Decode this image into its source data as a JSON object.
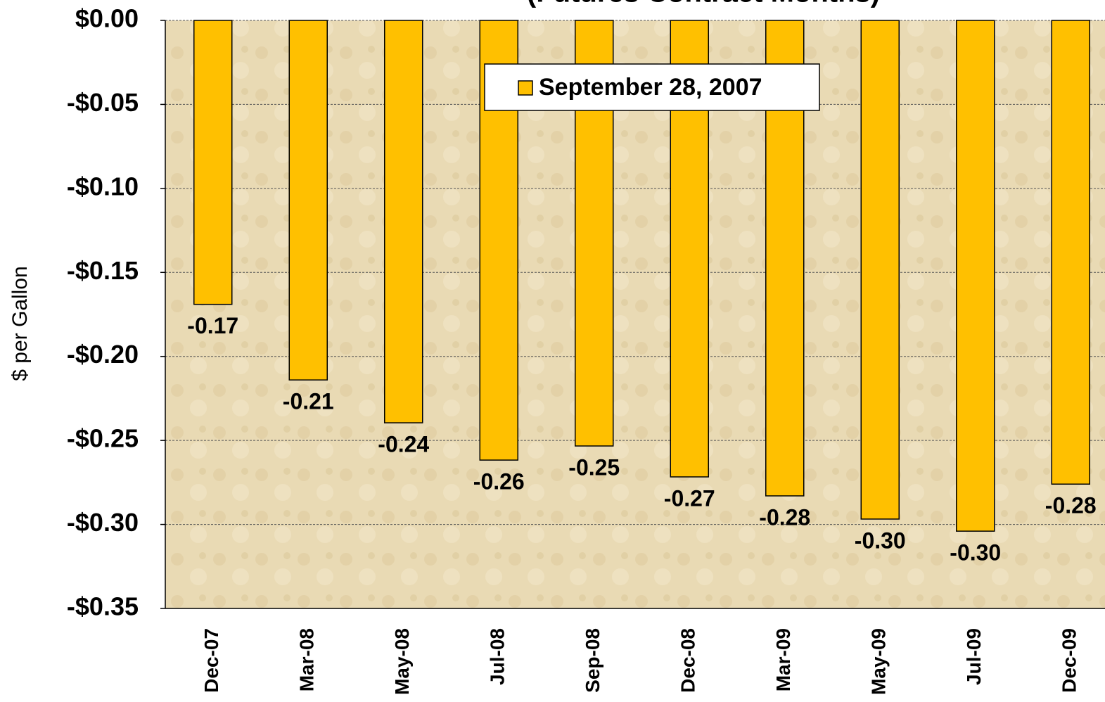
{
  "chart_data": {
    "type": "bar",
    "subtitle": "(Futures Contract Months)",
    "y_label": "$ per Gallon",
    "categories": [
      "Dec-07",
      "Mar-08",
      "May-08",
      "Jul-08",
      "Sep-08",
      "Dec-08",
      "Mar-09",
      "May-09",
      "Jul-09",
      "Dec-09"
    ],
    "series": [
      {
        "name": "September 28, 2007",
        "color": "#ffc000",
        "values": [
          -0.169,
          -0.214,
          -0.2395,
          -0.2617,
          -0.2533,
          -0.2717,
          -0.283,
          -0.2968,
          -0.304,
          -0.276
        ],
        "value_labels": [
          "-0.17",
          "-0.21",
          "-0.24",
          "-0.26",
          "-0.25",
          "-0.27",
          "-0.28",
          "-0.30",
          "-0.30",
          "-0.28"
        ]
      }
    ],
    "ylim": [
      -0.35,
      0
    ],
    "yticks": [
      {
        "value": 0,
        "label": "$0.00"
      },
      {
        "value": -0.05,
        "label": "-$0.05"
      },
      {
        "value": -0.1,
        "label": "-$0.10"
      },
      {
        "value": -0.15,
        "label": "-$0.15"
      },
      {
        "value": -0.2,
        "label": "-$0.20"
      },
      {
        "value": -0.25,
        "label": "-$0.25"
      },
      {
        "value": -0.3,
        "label": "-$0.30"
      },
      {
        "value": -0.35,
        "label": "-$0.35"
      }
    ],
    "grid": true
  }
}
